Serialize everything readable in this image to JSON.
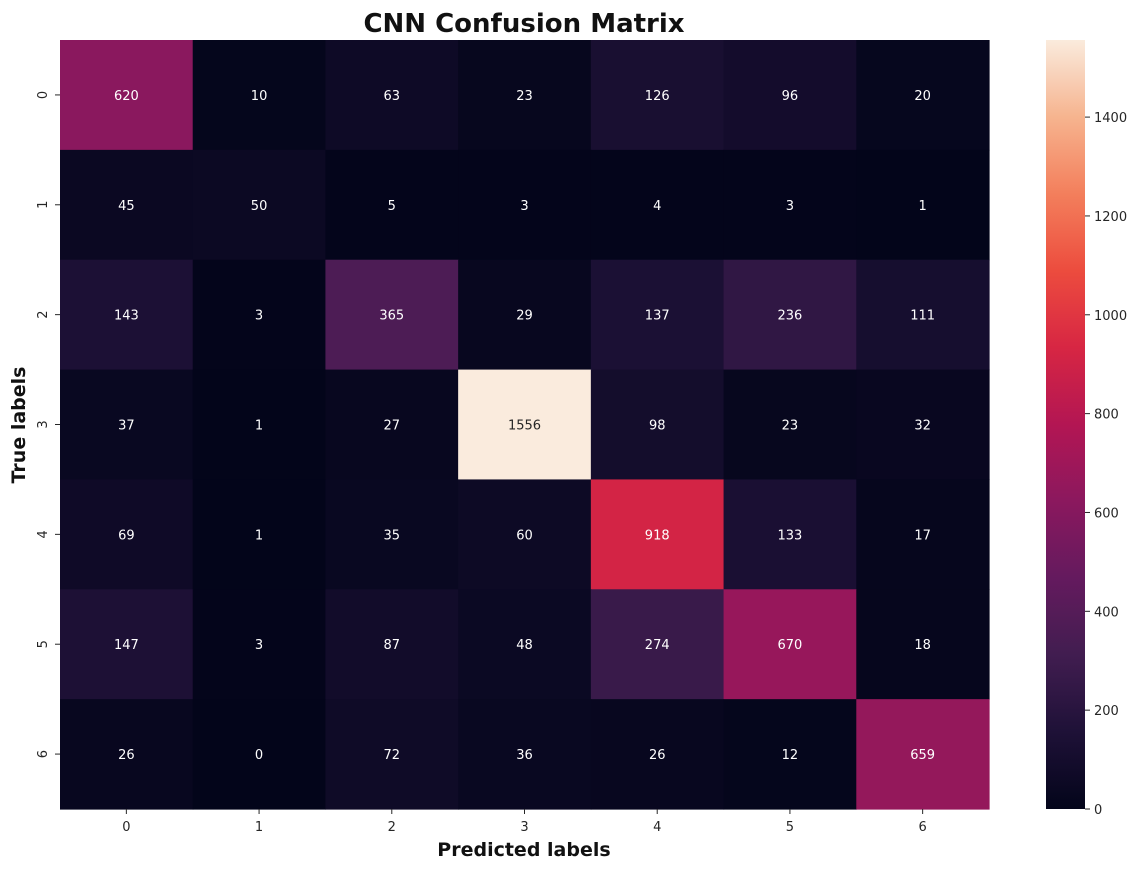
{
  "chart_data": {
    "type": "heatmap",
    "title": "CNN Confusion Matrix",
    "xlabel": "Predicted labels",
    "ylabel": "True labels",
    "x_categories": [
      "0",
      "1",
      "2",
      "3",
      "4",
      "5",
      "6"
    ],
    "y_categories": [
      "0",
      "1",
      "2",
      "3",
      "4",
      "5",
      "6"
    ],
    "values": [
      [
        620,
        10,
        63,
        23,
        126,
        96,
        20
      ],
      [
        45,
        50,
        5,
        3,
        4,
        3,
        1
      ],
      [
        143,
        3,
        365,
        29,
        137,
        236,
        111
      ],
      [
        37,
        1,
        27,
        1556,
        98,
        23,
        32
      ],
      [
        69,
        1,
        35,
        60,
        918,
        133,
        17
      ],
      [
        147,
        3,
        87,
        48,
        274,
        670,
        18
      ],
      [
        26,
        0,
        72,
        36,
        26,
        12,
        659
      ]
    ],
    "colorbar": {
      "min": 0,
      "max": 1556,
      "ticks": [
        0,
        200,
        400,
        600,
        800,
        1000,
        1200,
        1400
      ],
      "colormap": "rocket"
    }
  }
}
